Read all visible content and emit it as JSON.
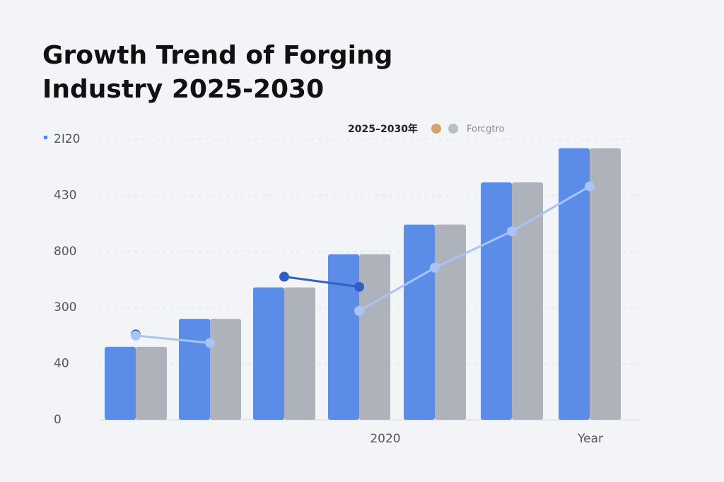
{
  "chart_data": {
    "type": "bar",
    "title_lines": [
      "Growth Trend of Forging",
      "Industry 2025-2030"
    ],
    "legend": {
      "names": [
        "2025–2030年",
        "Forcgtro"
      ],
      "colors": [
        "#d3a468",
        "#b9bec7"
      ]
    },
    "categories": [
      null,
      null,
      null,
      null,
      null,
      null,
      null
    ],
    "series": [
      {
        "name": "2025–2030年",
        "color": "#5b8de8",
        "values": [
          130,
          180,
          236,
          295,
          348,
          423,
          484
        ]
      },
      {
        "name": "Forcgtro",
        "color": "#adb2bb",
        "values": [
          130,
          180,
          236,
          295,
          348,
          423,
          484
        ]
      }
    ],
    "lines": [
      {
        "color": "#2f5fc4",
        "values": [
          152,
          null,
          255,
          237,
          null,
          null,
          null
        ]
      },
      {
        "color": "#a9c3f7",
        "values": [
          150,
          137,
          null,
          194,
          271,
          336,
          416
        ]
      }
    ],
    "ylim": [
      0,
      500
    ],
    "yticks": [
      0,
      {
        "value": 100,
        "label": "40"
      },
      {
        "value": 200,
        "label": "300"
      },
      {
        "value": 300,
        "label": "800"
      },
      {
        "value": 400,
        "label": "430"
      },
      {
        "value": 500,
        "label": "2I20"
      }
    ],
    "grid": true,
    "annotation": "2020",
    "x_label": "Year"
  }
}
